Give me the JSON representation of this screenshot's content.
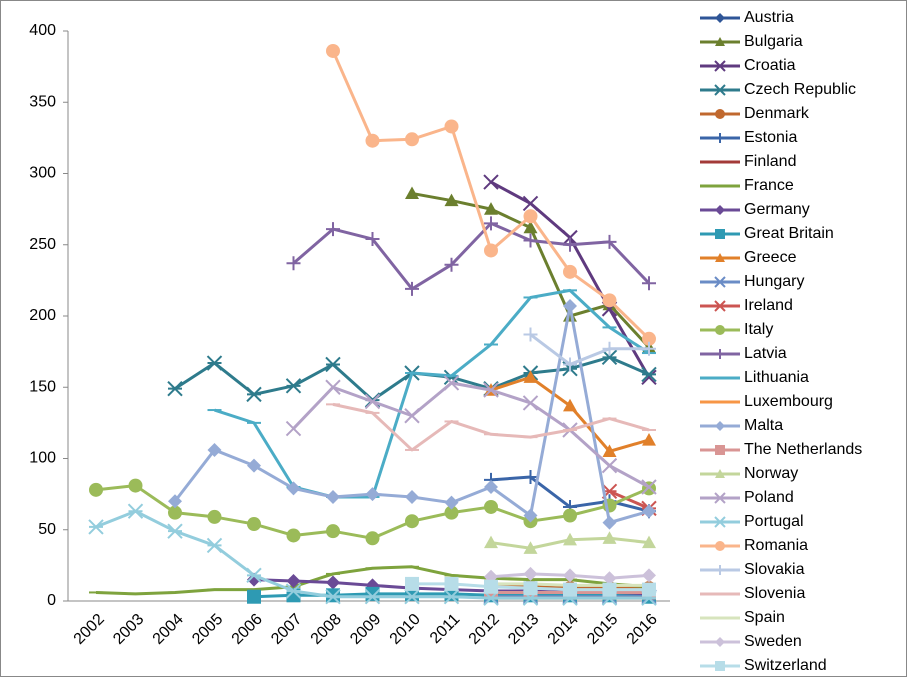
{
  "chart_data": {
    "type": "line",
    "categories": [
      2002,
      2003,
      2004,
      2005,
      2006,
      2007,
      2008,
      2009,
      2010,
      2011,
      2012,
      2013,
      2014,
      2015,
      2016
    ],
    "ylim": [
      0,
      400
    ],
    "yticks": [
      0,
      50,
      100,
      150,
      200,
      250,
      300,
      350,
      400
    ],
    "grid": false,
    "legend": "right",
    "series": [
      {
        "name": "Austria",
        "color": "#2f5597",
        "marker": "diamond",
        "values": [
          null,
          null,
          null,
          null,
          null,
          null,
          null,
          null,
          null,
          null,
          5,
          5,
          4,
          4,
          4
        ]
      },
      {
        "name": "Bulgaria",
        "color": "#6b7f2e",
        "marker": "triangle",
        "values": [
          null,
          null,
          null,
          null,
          null,
          null,
          null,
          null,
          286,
          281,
          275,
          262,
          200,
          208,
          178
        ]
      },
      {
        "name": "Croatia",
        "color": "#5f3a7f",
        "marker": "x",
        "values": [
          null,
          null,
          null,
          null,
          null,
          null,
          null,
          null,
          null,
          null,
          294,
          279,
          255,
          205,
          157
        ]
      },
      {
        "name": "Czech Republic",
        "color": "#2e7b8c",
        "marker": "star",
        "values": [
          null,
          null,
          149,
          167,
          145,
          151,
          166,
          141,
          160,
          157,
          149,
          160,
          163,
          171,
          159
        ]
      },
      {
        "name": "Denmark",
        "color": "#c0682e",
        "marker": "circle",
        "values": [
          null,
          null,
          null,
          null,
          null,
          null,
          null,
          null,
          null,
          null,
          10,
          10,
          9,
          9,
          9
        ]
      },
      {
        "name": "Estonia",
        "color": "#3a65a8",
        "marker": "plus",
        "values": [
          null,
          null,
          null,
          null,
          null,
          null,
          null,
          null,
          null,
          null,
          85,
          87,
          66,
          70,
          63
        ]
      },
      {
        "name": "Finland",
        "color": "#a33a38",
        "marker": "dash",
        "values": [
          null,
          null,
          null,
          null,
          null,
          null,
          null,
          null,
          null,
          null,
          6,
          6,
          6,
          5,
          5
        ]
      },
      {
        "name": "France",
        "color": "#7ea33d",
        "marker": "dash",
        "values": [
          6,
          5,
          6,
          8,
          8,
          10,
          19,
          23,
          24,
          18,
          16,
          15,
          15,
          12,
          10
        ]
      },
      {
        "name": "Germany",
        "color": "#6a4a96",
        "marker": "diamond",
        "values": [
          null,
          null,
          null,
          null,
          15,
          14,
          13,
          11,
          9,
          8,
          7,
          7,
          6,
          5,
          5
        ]
      },
      {
        "name": "Great Britain",
        "color": "#2e9ab3",
        "marker": "square",
        "values": [
          null,
          null,
          null,
          null,
          3,
          4,
          4,
          5,
          5,
          5,
          4,
          4,
          4,
          4,
          3
        ]
      },
      {
        "name": "Greece",
        "color": "#e1802a",
        "marker": "triangle",
        "values": [
          null,
          null,
          null,
          null,
          null,
          null,
          null,
          null,
          null,
          null,
          148,
          157,
          137,
          105,
          113
        ]
      },
      {
        "name": "Hungary",
        "color": "#6a8cc6",
        "marker": "x",
        "values": [
          null,
          null,
          null,
          null,
          null,
          null,
          null,
          null,
          null,
          null,
          3,
          3,
          3,
          3,
          3
        ]
      },
      {
        "name": "Ireland",
        "color": "#cc5552",
        "marker": "star",
        "values": [
          null,
          null,
          null,
          null,
          null,
          null,
          null,
          null,
          null,
          null,
          null,
          null,
          null,
          77,
          65
        ]
      },
      {
        "name": "Italy",
        "color": "#9bbb59",
        "marker": "circle",
        "values": [
          78,
          81,
          62,
          59,
          54,
          46,
          49,
          44,
          56,
          62,
          66,
          56,
          60,
          67,
          79
        ]
      },
      {
        "name": "Latvia",
        "color": "#8064a2",
        "marker": "plus",
        "values": [
          null,
          null,
          null,
          null,
          null,
          237,
          261,
          254,
          219,
          236,
          265,
          253,
          250,
          252,
          223
        ]
      },
      {
        "name": "Lithuania",
        "color": "#4bacc6",
        "marker": "dash",
        "values": [
          null,
          null,
          null,
          134,
          125,
          80,
          73,
          73,
          160,
          158,
          180,
          213,
          218,
          192,
          174
        ]
      },
      {
        "name": "Luxembourg",
        "color": "#f79646",
        "marker": "dash",
        "values": [
          null,
          null,
          null,
          null,
          null,
          null,
          null,
          null,
          null,
          null,
          2,
          2,
          2,
          2,
          2
        ]
      },
      {
        "name": "Malta",
        "color": "#95abd6",
        "marker": "diamond",
        "values": [
          null,
          null,
          70,
          106,
          95,
          79,
          73,
          75,
          73,
          69,
          80,
          60,
          207,
          55,
          63
        ]
      },
      {
        "name": "The Netherlands",
        "color": "#d99594",
        "marker": "square",
        "values": [
          null,
          null,
          null,
          null,
          null,
          null,
          null,
          null,
          null,
          null,
          6,
          6,
          6,
          6,
          6
        ]
      },
      {
        "name": "Norway",
        "color": "#c3d69b",
        "marker": "triangle",
        "values": [
          null,
          null,
          null,
          null,
          null,
          null,
          null,
          null,
          null,
          null,
          41,
          37,
          43,
          44,
          41
        ]
      },
      {
        "name": "Poland",
        "color": "#b3a2c7",
        "marker": "x",
        "values": [
          null,
          null,
          null,
          null,
          null,
          121,
          150,
          140,
          130,
          153,
          148,
          139,
          120,
          95,
          80
        ]
      },
      {
        "name": "Portugal",
        "color": "#93cddd",
        "marker": "star",
        "values": [
          52,
          63,
          49,
          39,
          18,
          7,
          3,
          3,
          3,
          3,
          2,
          2,
          2,
          2,
          2
        ]
      },
      {
        "name": "Romania",
        "color": "#fab58b",
        "marker": "circle",
        "values": [
          null,
          null,
          null,
          null,
          null,
          null,
          386,
          323,
          324,
          333,
          246,
          270,
          231,
          211,
          184
        ]
      },
      {
        "name": "Slovakia",
        "color": "#b9c9e4",
        "marker": "plus",
        "values": [
          null,
          null,
          null,
          null,
          null,
          null,
          null,
          null,
          null,
          null,
          null,
          187,
          166,
          177,
          177
        ]
      },
      {
        "name": "Slovenia",
        "color": "#e6b9b8",
        "marker": "dash",
        "values": [
          null,
          null,
          null,
          null,
          null,
          null,
          138,
          132,
          106,
          126,
          117,
          115,
          120,
          128,
          120
        ]
      },
      {
        "name": "Spain",
        "color": "#d7e4bd",
        "marker": "dash",
        "values": [
          null,
          null,
          null,
          null,
          null,
          null,
          null,
          null,
          null,
          null,
          12,
          12,
          11,
          11,
          11
        ]
      },
      {
        "name": "Sweden",
        "color": "#ccc1da",
        "marker": "diamond",
        "values": [
          null,
          null,
          null,
          null,
          null,
          null,
          null,
          null,
          null,
          null,
          17,
          19,
          18,
          16,
          18
        ]
      },
      {
        "name": "Switzerland",
        "color": "#b7dde8",
        "marker": "square",
        "values": [
          null,
          null,
          null,
          null,
          null,
          null,
          null,
          null,
          12,
          12,
          10,
          9,
          8,
          8,
          8
        ]
      }
    ]
  }
}
